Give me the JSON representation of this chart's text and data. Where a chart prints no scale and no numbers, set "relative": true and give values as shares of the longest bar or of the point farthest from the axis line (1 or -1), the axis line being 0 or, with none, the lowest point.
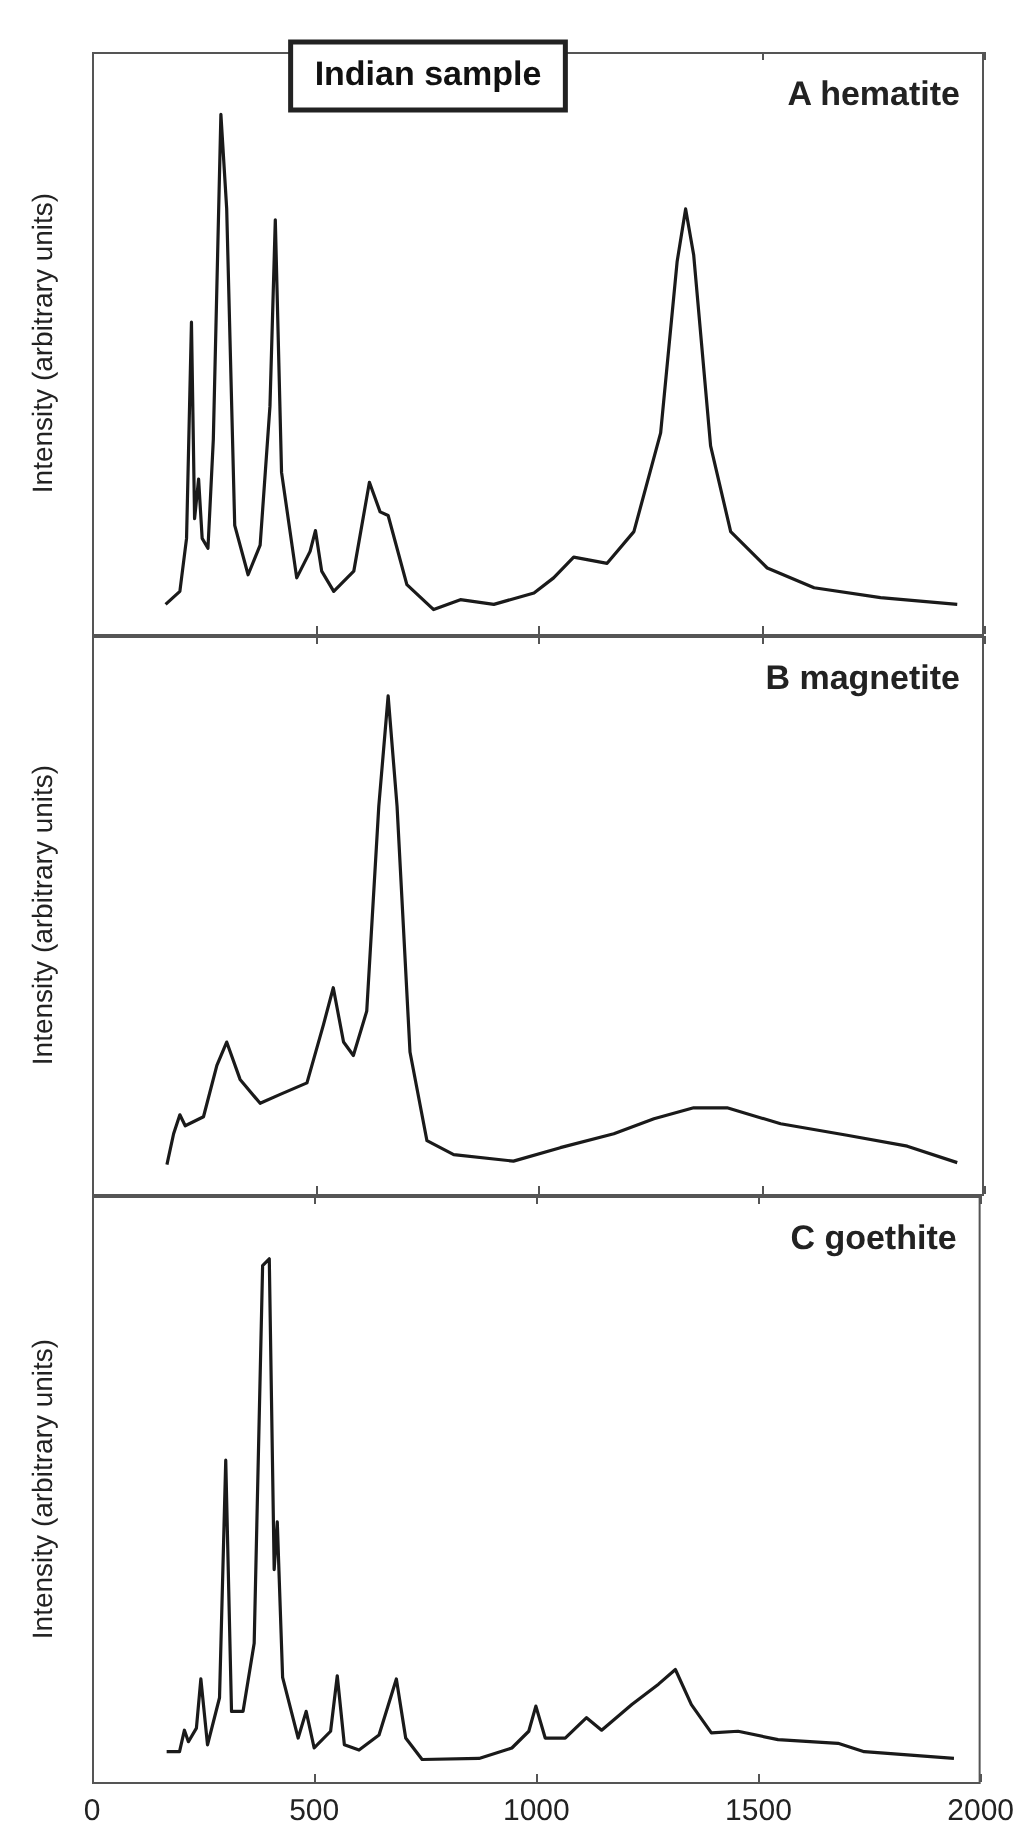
{
  "chart_data": [
    {
      "type": "line",
      "title": "Indian sample",
      "ylabel": "Intensity (arbitrary units)",
      "annotations": [
        "A hematite"
      ],
      "relative": true,
      "xlim": [
        0,
        2000
      ],
      "xticks": [
        0,
        500,
        1000,
        1500,
        2000
      ],
      "tick_labels": false,
      "marker": "none",
      "color": "#1a1a1a",
      "x": [
        165,
        197,
        212,
        223,
        230,
        239,
        247,
        260,
        272,
        289,
        302,
        320,
        350,
        377,
        399,
        411,
        425,
        459,
        489,
        501,
        515,
        542,
        587,
        622,
        646,
        664,
        706,
        766,
        826,
        901,
        991,
        1035,
        1080,
        1155,
        1215,
        1275,
        1312,
        1331,
        1349,
        1387,
        1432,
        1514,
        1619,
        1768,
        1940
      ],
      "values": [
        0.057,
        0.082,
        0.184,
        0.6,
        0.222,
        0.298,
        0.184,
        0.165,
        0.374,
        1.0,
        0.818,
        0.209,
        0.114,
        0.171,
        0.438,
        0.797,
        0.311,
        0.108,
        0.159,
        0.199,
        0.121,
        0.082,
        0.121,
        0.292,
        0.235,
        0.228,
        0.095,
        0.047,
        0.066,
        0.057,
        0.079,
        0.108,
        0.148,
        0.136,
        0.197,
        0.387,
        0.717,
        0.818,
        0.73,
        0.362,
        0.197,
        0.127,
        0.089,
        0.07,
        0.057
      ]
    },
    {
      "type": "line",
      "ylabel": "Intensity (arbitrary units)",
      "annotations": [
        "B magnetite"
      ],
      "relative": true,
      "xlim": [
        0,
        2000
      ],
      "xticks": [
        0,
        500,
        1000,
        1500,
        2000
      ],
      "tick_labels": false,
      "marker": "none",
      "color": "#1a1a1a",
      "x": [
        168,
        183,
        197,
        209,
        250,
        280,
        302,
        332,
        377,
        422,
        482,
        519,
        541,
        564,
        586,
        616,
        643,
        664,
        684,
        713,
        751,
        811,
        945,
        1050,
        1170,
        1260,
        1349,
        1424,
        1544,
        1693,
        1828,
        1940
      ],
      "values": [
        0.059,
        0.121,
        0.159,
        0.137,
        0.155,
        0.258,
        0.305,
        0.23,
        0.182,
        0.2,
        0.223,
        0.34,
        0.414,
        0.305,
        0.278,
        0.367,
        0.778,
        1.0,
        0.778,
        0.285,
        0.107,
        0.079,
        0.066,
        0.093,
        0.121,
        0.151,
        0.173,
        0.173,
        0.141,
        0.118,
        0.096,
        0.063
      ]
    },
    {
      "type": "line",
      "ylabel": "Intensity (arbitrary units)",
      "annotations": [
        "C goethite"
      ],
      "relative": true,
      "xlim": [
        0,
        2000
      ],
      "xticks": [
        0,
        500,
        1000,
        1500,
        2000
      ],
      "tick_labels": "x",
      "marker": "none",
      "color": "#1a1a1a",
      "x": [
        168,
        197,
        208,
        217,
        235,
        245,
        260,
        287,
        301,
        314,
        340,
        365,
        384,
        399,
        410,
        417,
        429,
        464,
        482,
        500,
        537,
        552,
        568,
        601,
        646,
        685,
        706,
        743,
        871,
        945,
        983,
        999,
        1020,
        1065,
        1113,
        1147,
        1215,
        1275,
        1313,
        1349,
        1394,
        1454,
        1544,
        1679,
        1738,
        1940
      ],
      "values": [
        0.058,
        0.058,
        0.099,
        0.077,
        0.103,
        0.197,
        0.071,
        0.161,
        0.615,
        0.135,
        0.135,
        0.265,
        0.987,
        1.0,
        0.406,
        0.497,
        0.2,
        0.084,
        0.135,
        0.065,
        0.097,
        0.203,
        0.071,
        0.061,
        0.09,
        0.197,
        0.084,
        0.043,
        0.045,
        0.065,
        0.097,
        0.145,
        0.084,
        0.084,
        0.123,
        0.099,
        0.148,
        0.187,
        0.215,
        0.148,
        0.094,
        0.097,
        0.081,
        0.074,
        0.058,
        0.045
      ]
    }
  ]
}
